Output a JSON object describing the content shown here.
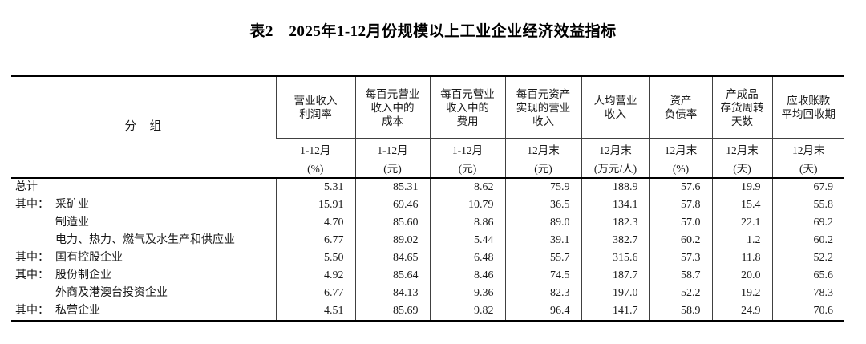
{
  "page": {
    "title": "表2　2025年1-12月份规模以上工业企业经济效益指标"
  },
  "colors": {
    "text": "#1a1a1a",
    "border": "#000000"
  },
  "table": {
    "group_header": "分　组",
    "columns": [
      {
        "name": "营业收入\n利润率",
        "period": "1-12月",
        "unit": "(%)"
      },
      {
        "name": "每百元营业\n收入中的\n成本",
        "period": "1-12月",
        "unit": "(元)"
      },
      {
        "name": "每百元营业\n收入中的\n费用",
        "period": "1-12月",
        "unit": "(元)"
      },
      {
        "name": "每百元资产\n实现的营业\n收入",
        "period": "12月末",
        "unit": "(元)"
      },
      {
        "name": "人均营业\n收入",
        "period": "12月末",
        "unit": "(万元/人)"
      },
      {
        "name": "资产\n负债率",
        "period": "12月末",
        "unit": "(%)"
      },
      {
        "name": "产成品\n存货周转\n天数",
        "period": "12月末",
        "unit": "(天)"
      },
      {
        "name": "应收账款\n平均回收期",
        "period": "12月末",
        "unit": "(天)"
      }
    ],
    "rows": [
      {
        "prefix": "",
        "indent": false,
        "label": "总计",
        "values": [
          "5.31",
          "85.31",
          "8.62",
          "75.9",
          "188.9",
          "57.6",
          "19.9",
          "67.9"
        ]
      },
      {
        "prefix": "其中：",
        "indent": false,
        "label": "采矿业",
        "values": [
          "15.91",
          "69.46",
          "10.79",
          "36.5",
          "134.1",
          "57.8",
          "15.4",
          "55.8"
        ]
      },
      {
        "prefix": "",
        "indent": true,
        "label": "制造业",
        "values": [
          "4.70",
          "85.60",
          "8.86",
          "89.0",
          "182.3",
          "57.0",
          "22.1",
          "69.2"
        ]
      },
      {
        "prefix": "",
        "indent": true,
        "label": "电力、热力、燃气及水生产和供应业",
        "values": [
          "6.77",
          "89.02",
          "5.44",
          "39.1",
          "382.7",
          "60.2",
          "1.2",
          "60.2"
        ]
      },
      {
        "prefix": "其中：",
        "indent": false,
        "label": "国有控股企业",
        "values": [
          "5.50",
          "84.65",
          "6.48",
          "55.7",
          "315.6",
          "57.3",
          "11.8",
          "52.2"
        ]
      },
      {
        "prefix": "其中：",
        "indent": false,
        "label": "股份制企业",
        "values": [
          "4.92",
          "85.64",
          "8.46",
          "74.5",
          "187.7",
          "58.7",
          "20.0",
          "65.6"
        ]
      },
      {
        "prefix": "",
        "indent": true,
        "label": "外商及港澳台投资企业",
        "values": [
          "6.77",
          "84.13",
          "9.36",
          "82.3",
          "197.0",
          "52.2",
          "19.2",
          "78.3"
        ]
      },
      {
        "prefix": "其中：",
        "indent": false,
        "label": "私营企业",
        "values": [
          "4.51",
          "85.69",
          "9.82",
          "96.4",
          "141.7",
          "58.9",
          "24.9",
          "70.6"
        ]
      }
    ]
  }
}
